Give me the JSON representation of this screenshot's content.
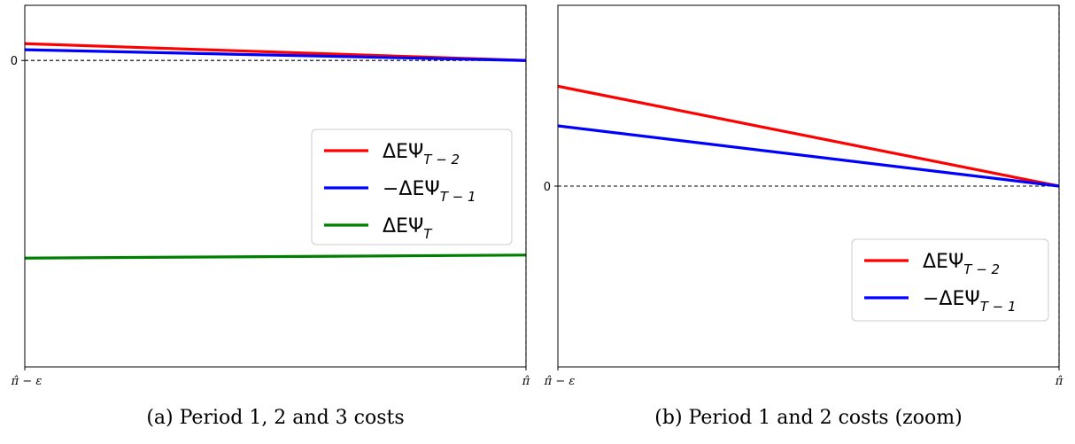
{
  "chart_data": [
    {
      "type": "line",
      "panel": "a",
      "caption": "(a) Period 1, 2 and 3 costs",
      "x_ticks": [
        {
          "x": 0,
          "label": "π̂ − ε"
        },
        {
          "x": 1,
          "label": "π̂"
        }
      ],
      "y_ticks": [
        {
          "y": 0,
          "label": "0"
        }
      ],
      "xlim": [
        0,
        1
      ],
      "ylim": [
        -1.0,
        0.18
      ],
      "zero_line": {
        "y": 0,
        "style": "dashed"
      },
      "x_end_line": {
        "x": 1,
        "style": "dashed"
      },
      "grid": false,
      "legend": {
        "placement": "center-right"
      },
      "series": [
        {
          "name": "ΔEΨ",
          "subscript": "T − 2",
          "color": "#ff0000",
          "x": [
            0,
            1
          ],
          "y": [
            0.055,
            0.0
          ]
        },
        {
          "name": "−ΔEΨ",
          "subscript": "T − 1",
          "color": "#0000ff",
          "x": [
            0,
            1
          ],
          "y": [
            0.035,
            0.0
          ]
        },
        {
          "name": "ΔEΨ",
          "subscript": "T",
          "color": "#008000",
          "x": [
            0,
            1
          ],
          "y": [
            -0.645,
            -0.635
          ]
        }
      ]
    },
    {
      "type": "line",
      "panel": "b",
      "caption": "(b) Period 1 and 2 costs (zoom)",
      "x_ticks": [
        {
          "x": 0,
          "label": "π̂ − ε"
        },
        {
          "x": 1,
          "label": "π̂"
        }
      ],
      "y_ticks": [
        {
          "y": 0,
          "label": "0"
        }
      ],
      "xlim": [
        0,
        1
      ],
      "ylim": [
        -0.105,
        0.105
      ],
      "zero_line": {
        "y": 0,
        "style": "dashed"
      },
      "x_end_line": {
        "x": 1,
        "style": "dashed"
      },
      "grid": false,
      "legend": {
        "placement": "lower-right"
      },
      "series": [
        {
          "name": "ΔEΨ",
          "subscript": "T − 2",
          "color": "#ff0000",
          "x": [
            0,
            1
          ],
          "y": [
            0.058,
            0.0
          ]
        },
        {
          "name": "−ΔEΨ",
          "subscript": "T − 1",
          "color": "#0000ff",
          "x": [
            0,
            1
          ],
          "y": [
            0.035,
            0.0
          ]
        }
      ]
    }
  ]
}
